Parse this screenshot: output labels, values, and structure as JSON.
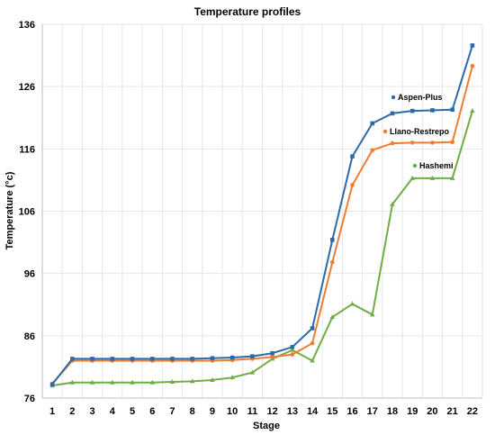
{
  "chart_data": {
    "type": "line",
    "title": "Temperature profiles",
    "xlabel": "Stage",
    "ylabel": "Temperature (°c)",
    "x": [
      1,
      2,
      3,
      4,
      5,
      6,
      7,
      8,
      9,
      10,
      11,
      12,
      13,
      14,
      15,
      16,
      17,
      18,
      19,
      20,
      21,
      22
    ],
    "ylim": [
      76,
      136
    ],
    "yticks": [
      76,
      86,
      96,
      106,
      116,
      126,
      136
    ],
    "grid": true,
    "legend_placement": "inline labels near series",
    "series": [
      {
        "name": "Aspen-Plus",
        "color": "#2e6aa8",
        "marker": "square",
        "values": [
          78.2,
          82.3,
          82.3,
          82.3,
          82.3,
          82.3,
          82.3,
          82.3,
          82.4,
          82.5,
          82.7,
          83.2,
          84.2,
          87.2,
          101.4,
          114.8,
          120.1,
          121.7,
          122.1,
          122.2,
          122.3,
          132.6
        ]
      },
      {
        "name": "Llano-Restrepo",
        "color": "#ed7d31",
        "marker": "circle",
        "values": [
          78.3,
          82.0,
          82.0,
          82.0,
          82.0,
          82.0,
          82.0,
          82.0,
          82.0,
          82.1,
          82.3,
          82.6,
          83.0,
          84.8,
          97.8,
          110.2,
          115.8,
          116.9,
          117.0,
          117.0,
          117.1,
          129.3
        ]
      },
      {
        "name": "Hashemi",
        "color": "#70ad47",
        "marker": "triangle",
        "values": [
          78.0,
          78.5,
          78.5,
          78.5,
          78.5,
          78.5,
          78.6,
          78.7,
          78.9,
          79.3,
          80.1,
          82.3,
          83.7,
          82.0,
          89.0,
          91.1,
          89.4,
          107.1,
          111.3,
          111.3,
          111.3,
          122.1
        ]
      }
    ]
  }
}
